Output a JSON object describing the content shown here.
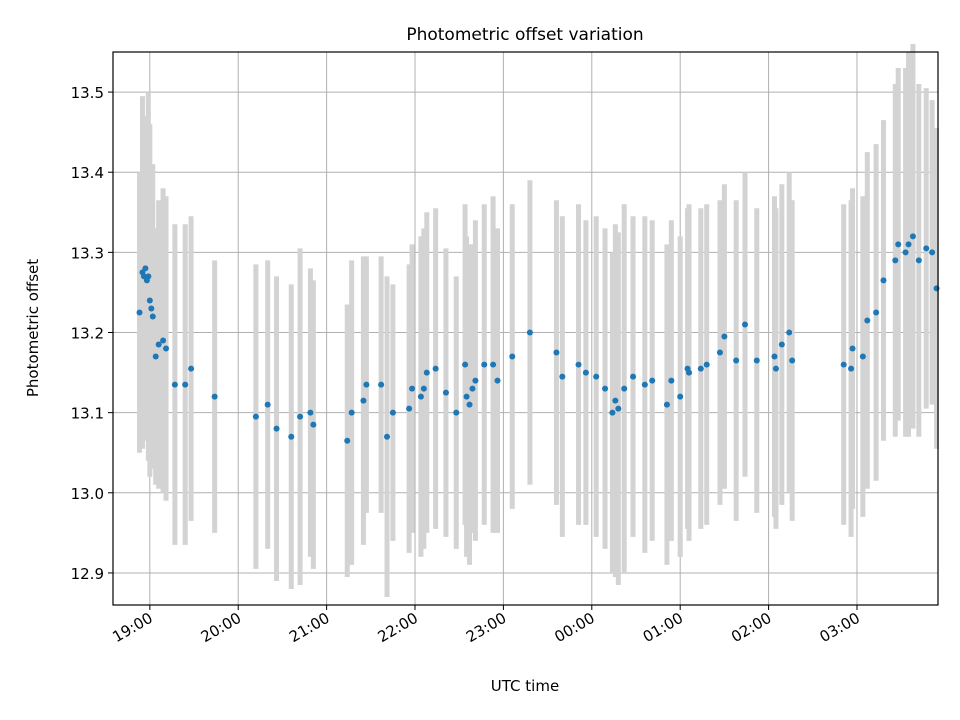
{
  "chart_data": {
    "type": "scatter",
    "title": "Photometric offset variation",
    "xlabel": "UTC time",
    "ylabel": "Photometric offset",
    "x_tick_labels": [
      "19:00",
      "20:00",
      "21:00",
      "22:00",
      "23:00",
      "00:00",
      "01:00",
      "02:00",
      "03:00"
    ],
    "x_tick_hours": [
      19,
      20,
      21,
      22,
      23,
      24,
      25,
      26,
      27
    ],
    "y_ticks": [
      12.9,
      13.0,
      13.1,
      13.2,
      13.3,
      13.4,
      13.5
    ],
    "y_tick_labels": [
      "12.9",
      "13.0",
      "13.1",
      "13.2",
      "13.3",
      "13.4",
      "13.5"
    ],
    "xlim": [
      "18:35",
      "03:55"
    ],
    "ylim": [
      12.86,
      13.55
    ],
    "grid": true,
    "legend": "none",
    "colors": {
      "points": "#1f77b4",
      "error_bars": "#d3d3d3",
      "grid": "#b0b0b0"
    },
    "x_unit": "UTC time (HH:MM; hours ≥ 24 are after midnight)",
    "series": [
      {
        "x": [
          "18:53",
          "18:55",
          "18:56",
          "18:57",
          "18:58",
          "18:59",
          "19:00",
          "19:01",
          "19:02",
          "19:04",
          "19:06",
          "19:09",
          "19:11",
          "19:17",
          "19:24",
          "19:28",
          "19:44",
          "20:12",
          "20:20",
          "20:26",
          "20:36",
          "20:42",
          "20:49",
          "20:51",
          "21:14",
          "21:17",
          "21:25",
          "21:27",
          "21:37",
          "21:41",
          "21:45",
          "21:56",
          "21:58",
          "22:04",
          "22:06",
          "22:08",
          "22:14",
          "22:21",
          "22:28",
          "22:34",
          "22:35",
          "22:37",
          "22:39",
          "22:41",
          "22:47",
          "22:53",
          "22:56",
          "23:06",
          "23:18",
          "23:36",
          "23:40",
          "23:51",
          "23:56",
          "24:03",
          "24:09",
          "24:14",
          "24:16",
          "24:18",
          "24:22",
          "24:28",
          "24:36",
          "24:41",
          "24:51",
          "24:54",
          "25:00",
          "25:05",
          "25:06",
          "25:14",
          "25:18",
          "25:27",
          "25:30",
          "25:38",
          "25:44",
          "25:52",
          "26:04",
          "26:05",
          "26:09",
          "26:14",
          "26:16",
          "26:51",
          "26:56",
          "26:57",
          "27:04",
          "27:07",
          "27:13",
          "27:18",
          "27:26",
          "27:28",
          "27:33",
          "27:35",
          "27:38",
          "27:42",
          "27:47",
          "27:51",
          "27:54"
        ],
        "y": [
          13.225,
          13.275,
          13.27,
          13.28,
          13.265,
          13.27,
          13.24,
          13.23,
          13.22,
          13.17,
          13.185,
          13.19,
          13.18,
          13.135,
          13.135,
          13.155,
          13.12,
          13.095,
          13.11,
          13.08,
          13.07,
          13.095,
          13.1,
          13.085,
          13.065,
          13.1,
          13.115,
          13.135,
          13.135,
          13.07,
          13.1,
          13.105,
          13.13,
          13.12,
          13.13,
          13.15,
          13.155,
          13.125,
          13.1,
          13.16,
          13.12,
          13.11,
          13.13,
          13.14,
          13.16,
          13.16,
          13.14,
          13.17,
          13.2,
          13.175,
          13.145,
          13.16,
          13.15,
          13.145,
          13.13,
          13.1,
          13.115,
          13.105,
          13.13,
          13.145,
          13.135,
          13.14,
          13.11,
          13.14,
          13.12,
          13.155,
          13.15,
          13.155,
          13.16,
          13.175,
          13.195,
          13.165,
          13.21,
          13.165,
          13.17,
          13.155,
          13.185,
          13.2,
          13.165,
          13.16,
          13.155,
          13.18,
          13.17,
          13.215,
          13.225,
          13.265,
          13.29,
          13.31,
          13.3,
          13.31,
          13.32,
          13.29,
          13.305,
          13.3,
          13.255
        ],
        "err": [
          0.175,
          0.22,
          0.19,
          0.19,
          0.2,
          0.23,
          0.22,
          0.18,
          0.19,
          0.16,
          0.18,
          0.19,
          0.19,
          0.2,
          0.2,
          0.19,
          0.17,
          0.19,
          0.18,
          0.19,
          0.19,
          0.21,
          0.18,
          0.18,
          0.17,
          0.19,
          0.18,
          0.16,
          0.16,
          0.2,
          0.16,
          0.18,
          0.18,
          0.2,
          0.2,
          0.2,
          0.2,
          0.18,
          0.17,
          0.2,
          0.2,
          0.2,
          0.18,
          0.2,
          0.2,
          0.21,
          0.19,
          0.19,
          0.19,
          0.19,
          0.2,
          0.2,
          0.19,
          0.2,
          0.2,
          0.2,
          0.22,
          0.22,
          0.23,
          0.2,
          0.21,
          0.2,
          0.2,
          0.2,
          0.2,
          0.2,
          0.21,
          0.2,
          0.2,
          0.19,
          0.19,
          0.2,
          0.19,
          0.19,
          0.2,
          0.2,
          0.2,
          0.2,
          0.2,
          0.2,
          0.21,
          0.2,
          0.2,
          0.21,
          0.21,
          0.2,
          0.22,
          0.22,
          0.23,
          0.24,
          0.24,
          0.22,
          0.2,
          0.19,
          0.2
        ]
      }
    ]
  }
}
